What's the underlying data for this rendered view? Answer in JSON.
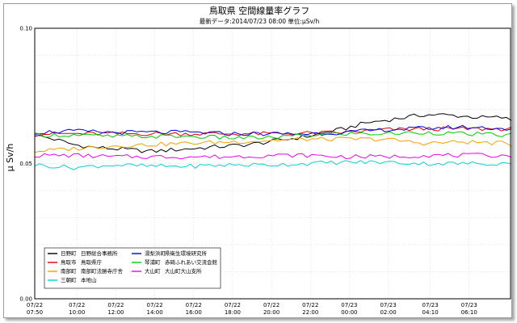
{
  "chart_data": {
    "type": "line",
    "title": "鳥取県 空間線量率グラフ",
    "subtitle": "最新データ:2014/07/23 08:00 単位:μSv/h",
    "ylabel": "μ Sv/h",
    "ylim": [
      0.0,
      0.1
    ],
    "yticks": [
      "0.00",
      "0.05",
      "0.10"
    ],
    "grid": true,
    "x_range_hours": [
      0,
      24.5
    ],
    "x_ticks": [
      {
        "hour": 0,
        "date": "07/22",
        "time": "07:50"
      },
      {
        "hour": 2.17,
        "date": "07/22",
        "time": "10:00"
      },
      {
        "hour": 4.17,
        "date": "07/22",
        "time": "12:00"
      },
      {
        "hour": 6.17,
        "date": "07/22",
        "time": "14:00"
      },
      {
        "hour": 8.17,
        "date": "07/22",
        "time": "16:00"
      },
      {
        "hour": 10.17,
        "date": "07/22",
        "time": "18:00"
      },
      {
        "hour": 12.17,
        "date": "07/22",
        "time": "20:00"
      },
      {
        "hour": 14.17,
        "date": "07/22",
        "time": "22:00"
      },
      {
        "hour": 16.17,
        "date": "07/23",
        "time": "00:00"
      },
      {
        "hour": 18.17,
        "date": "07/23",
        "time": "02:00"
      },
      {
        "hour": 20.33,
        "date": "07/23",
        "time": "04:10"
      },
      {
        "hour": 22.33,
        "date": "07/23",
        "time": "06:10"
      }
    ],
    "legend_position": "bottom-left",
    "series": [
      {
        "name": "日野町 日野総合事務所",
        "color": "#000000",
        "points": [
          [
            0,
            0.0605
          ],
          [
            1,
            0.059
          ],
          [
            2,
            0.057
          ],
          [
            3,
            0.056
          ],
          [
            4,
            0.0555
          ],
          [
            5,
            0.055
          ],
          [
            6,
            0.0545
          ],
          [
            7,
            0.055
          ],
          [
            8,
            0.0555
          ],
          [
            9,
            0.056
          ],
          [
            10,
            0.0565
          ],
          [
            11,
            0.057
          ],
          [
            12,
            0.058
          ],
          [
            13,
            0.059
          ],
          [
            14,
            0.06
          ],
          [
            15,
            0.0615
          ],
          [
            16,
            0.063
          ],
          [
            17,
            0.065
          ],
          [
            18,
            0.066
          ],
          [
            19,
            0.067
          ],
          [
            20,
            0.068
          ],
          [
            21,
            0.068
          ],
          [
            22,
            0.0675
          ],
          [
            23,
            0.067
          ],
          [
            24,
            0.067
          ],
          [
            24.5,
            0.066
          ]
        ]
      },
      {
        "name": "鳥取市 鳥取県庁",
        "color": "#e00000",
        "points": [
          [
            0,
            0.061
          ],
          [
            2,
            0.061
          ],
          [
            4,
            0.061
          ],
          [
            6,
            0.061
          ],
          [
            8,
            0.061
          ],
          [
            10,
            0.061
          ],
          [
            12,
            0.061
          ],
          [
            14,
            0.0612
          ],
          [
            16,
            0.0615
          ],
          [
            18,
            0.0625
          ],
          [
            20,
            0.0628
          ],
          [
            22,
            0.0628
          ],
          [
            24,
            0.0628
          ],
          [
            24.5,
            0.0628
          ]
        ]
      },
      {
        "name": "南部町 南部町法勝寺庁舎",
        "color": "#f5a000",
        "points": [
          [
            0,
            0.0545
          ],
          [
            2,
            0.0555
          ],
          [
            4,
            0.0565
          ],
          [
            6,
            0.057
          ],
          [
            8,
            0.0575
          ],
          [
            10,
            0.058
          ],
          [
            12,
            0.0585
          ],
          [
            14,
            0.059
          ],
          [
            16,
            0.059
          ],
          [
            18,
            0.059
          ],
          [
            20,
            0.0575
          ],
          [
            22,
            0.058
          ],
          [
            24,
            0.0575
          ],
          [
            24.5,
            0.057
          ]
        ]
      },
      {
        "name": "三朝町 本地山",
        "color": "#00d0e0",
        "points": [
          [
            0,
            0.0495
          ],
          [
            2,
            0.0485
          ],
          [
            4,
            0.0495
          ],
          [
            6,
            0.049
          ],
          [
            8,
            0.049
          ],
          [
            10,
            0.0495
          ],
          [
            12,
            0.0495
          ],
          [
            14,
            0.05
          ],
          [
            16,
            0.0505
          ],
          [
            18,
            0.0505
          ],
          [
            20,
            0.05
          ],
          [
            22,
            0.05
          ],
          [
            24,
            0.05
          ],
          [
            24.5,
            0.0505
          ]
        ]
      },
      {
        "name": "湯梨浜町 県衛生環境研究所",
        "color": "#0000e0",
        "points": [
          [
            0,
            0.0615
          ],
          [
            2,
            0.062
          ],
          [
            4,
            0.0615
          ],
          [
            6,
            0.0615
          ],
          [
            8,
            0.0615
          ],
          [
            10,
            0.061
          ],
          [
            12,
            0.061
          ],
          [
            14,
            0.061
          ],
          [
            16,
            0.0615
          ],
          [
            18,
            0.0625
          ],
          [
            20,
            0.063
          ],
          [
            22,
            0.0635
          ],
          [
            24,
            0.063
          ],
          [
            24.5,
            0.0625
          ]
        ]
      },
      {
        "name": "琴浦町 赤碕ふれあい交流会館",
        "color": "#00cc00",
        "points": [
          [
            0,
            0.0605
          ],
          [
            2,
            0.0605
          ],
          [
            4,
            0.06
          ],
          [
            6,
            0.06
          ],
          [
            8,
            0.06
          ],
          [
            10,
            0.0595
          ],
          [
            12,
            0.0595
          ],
          [
            14,
            0.0605
          ],
          [
            16,
            0.061
          ],
          [
            18,
            0.061
          ],
          [
            20,
            0.0615
          ],
          [
            22,
            0.061
          ],
          [
            24,
            0.0605
          ],
          [
            24.5,
            0.0605
          ]
        ]
      },
      {
        "name": "大山町 大山町大山支所",
        "color": "#ee00ee",
        "points": [
          [
            0,
            0.053
          ],
          [
            2,
            0.053
          ],
          [
            4,
            0.0525
          ],
          [
            6,
            0.0525
          ],
          [
            8,
            0.0525
          ],
          [
            10,
            0.0525
          ],
          [
            12,
            0.053
          ],
          [
            14,
            0.053
          ],
          [
            16,
            0.0525
          ],
          [
            18,
            0.0525
          ],
          [
            20,
            0.053
          ],
          [
            22,
            0.053
          ],
          [
            24,
            0.053
          ],
          [
            24.5,
            0.053
          ]
        ]
      }
    ]
  }
}
